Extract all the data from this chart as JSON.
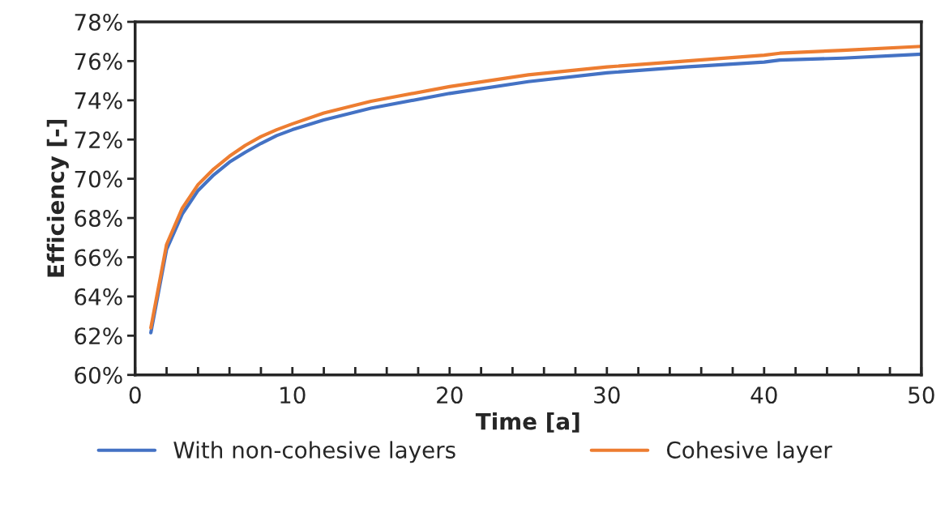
{
  "chart_data": {
    "type": "line",
    "xlabel": "Time [a]",
    "ylabel": "Efficiency [-]",
    "x": [
      1,
      2,
      3,
      4,
      5,
      6,
      7,
      8,
      9,
      10,
      12,
      15,
      20,
      25,
      30,
      35,
      40,
      41,
      45,
      50
    ],
    "series": [
      {
        "name": "With non-cohesive layers",
        "color": "#4472c4",
        "values": [
          62.15,
          66.4,
          68.2,
          69.4,
          70.2,
          70.85,
          71.35,
          71.8,
          72.2,
          72.5,
          73.0,
          73.6,
          74.35,
          74.95,
          75.4,
          75.7,
          75.95,
          76.05,
          76.15,
          76.35
        ]
      },
      {
        "name": "Cohesive layer",
        "color": "#ed7d31",
        "values": [
          62.4,
          66.65,
          68.5,
          69.7,
          70.5,
          71.15,
          71.7,
          72.15,
          72.5,
          72.8,
          73.35,
          73.95,
          74.7,
          75.3,
          75.7,
          76.0,
          76.3,
          76.4,
          76.55,
          76.75
        ]
      }
    ],
    "xlim": [
      0,
      50
    ],
    "xticks": [
      0,
      {
        "value": 2,
        "label": null
      },
      {
        "value": 4,
        "label": null
      },
      {
        "value": 6,
        "label": null
      },
      {
        "value": 8,
        "label": null
      },
      10,
      {
        "value": 12,
        "label": null
      },
      {
        "value": 14,
        "label": null
      },
      {
        "value": 16,
        "label": null
      },
      {
        "value": 18,
        "label": null
      },
      20,
      {
        "value": 22,
        "label": null
      },
      {
        "value": 24,
        "label": null
      },
      {
        "value": 26,
        "label": null
      },
      {
        "value": 28,
        "label": null
      },
      30,
      {
        "value": 32,
        "label": null
      },
      {
        "value": 34,
        "label": null
      },
      {
        "value": 36,
        "label": null
      },
      {
        "value": 38,
        "label": null
      },
      40,
      {
        "value": 42,
        "label": null
      },
      {
        "value": 44,
        "label": null
      },
      {
        "value": 46,
        "label": null
      },
      {
        "value": 48,
        "label": null
      },
      50
    ],
    "ylim": [
      60,
      78
    ],
    "yticks": [
      {
        "value": 60,
        "label": "60%"
      },
      {
        "value": 62,
        "label": "62%"
      },
      {
        "value": 64,
        "label": "64%"
      },
      {
        "value": 66,
        "label": "66%"
      },
      {
        "value": 68,
        "label": "68%"
      },
      {
        "value": 70,
        "label": "70%"
      },
      {
        "value": 72,
        "label": "72%"
      },
      {
        "value": 74,
        "label": "74%"
      },
      {
        "value": 76,
        "label": "76%"
      },
      {
        "value": 78,
        "label": "78%"
      }
    ],
    "grid": false,
    "legend": "bottom",
    "marker": "none",
    "line_style": "solid"
  }
}
